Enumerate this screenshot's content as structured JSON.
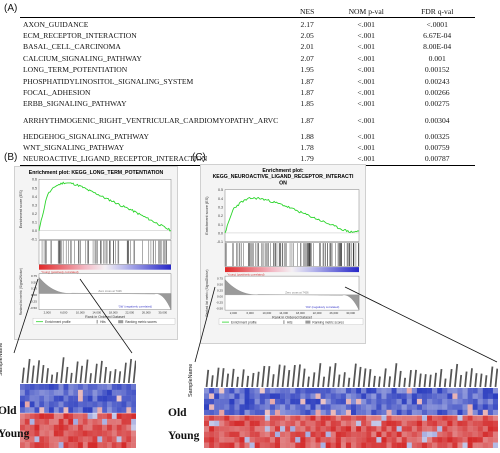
{
  "panels": {
    "a": "(A)",
    "b": "(B)",
    "c": "(C)"
  },
  "table": {
    "headers": [
      "",
      "NES",
      "NOM p-val",
      "FDR q-val"
    ],
    "rows": [
      [
        "AXON_GUIDANCE",
        "2.17",
        "<.001",
        "<.0001"
      ],
      [
        "ECM_RECEPTOR_INTERACTION",
        "2.05",
        "<.001",
        "6.67E-04"
      ],
      [
        "BASAL_CELL_CARCINOMA",
        "2.01",
        "<.001",
        "8.00E-04"
      ],
      [
        "CALCIUM_SIGNALING_PATHWAY",
        "2.07",
        "<.001",
        "0.001"
      ],
      [
        "LONG_TERM_POTENTIATION",
        "1.95",
        "<.001",
        "0.00152"
      ],
      [
        "PHOSPHATIDYLINOSITOL_SIGNALING_SYSTEM",
        "1.87",
        "<.001",
        "0.00243"
      ],
      [
        "FOCAL_ADHESION",
        "1.87",
        "<.001",
        "0.00266"
      ],
      [
        "ERBB_SIGNALING_PATHWAY",
        "1.85",
        "<.001",
        "0.00275"
      ],
      [
        "ARRHYTHMOGENIC_RIGHT_VENTRICULAR_CARDIOMYOPATHY_ARVC",
        "1.87",
        "<.001",
        "0.00304"
      ],
      [
        "HEDGEHOG_SIGNALING_PATHWAY",
        "1.88",
        "<.001",
        "0.00325"
      ],
      [
        "WNT_SIGNALING_PATHWAY",
        "1.78",
        "<.001",
        "0.00759"
      ],
      [
        "NEUROACTIVE_LIGAND_RECEPTOR_INTERACTION",
        "1.79",
        "<.001",
        "0.00787"
      ]
    ]
  },
  "plot_b": {
    "title_line1": "Enrichment plot: KEGG_LONG_TERM_POTENTIATION",
    "title_line2": "",
    "es_ylabel": "Enrichment score (ES)",
    "rank_ylabel": "Ranked list metric (Signal2Noise)",
    "xlabel": "Rank in Ordered Dataset",
    "pos_label": "'Young' (positively correlated)",
    "neg_label": "'Old' (negatively correlated)",
    "zero_label": "Zero cross at 7426",
    "legend": [
      "Enrichment profile",
      "Hits",
      "Ranking metric scores"
    ]
  },
  "plot_c": {
    "title_line1": "Enrichment plot:",
    "title_line2": "KEGG_NEUROACTIVE_LIGAND_RECEPTOR_INTERACTI",
    "title_line3": "ON",
    "es_ylabel": "Enrichment score (ES)",
    "rank_ylabel": "Ranked list metric (Signal2Noise)",
    "xlabel": "Rank in Ordered Dataset",
    "pos_label": "'Young' (positively correlated)",
    "neg_label": "'Old' (negatively correlated)",
    "zero_label": "Zero cross at 7426",
    "legend": [
      "Enrichment profile",
      "Hits",
      "Ranking metric scores"
    ]
  },
  "es_axis": {
    "ticks": [
      "0.6",
      "0.5",
      "0.4",
      "0.3",
      "0.2",
      "0.1",
      "0.0",
      "-0.1"
    ]
  },
  "rank_axis": {
    "ticks": [
      "0.75",
      "0.50",
      "0.25",
      "0.00",
      "-0.25",
      "-0.50"
    ]
  },
  "x_axis": {
    "ticks": [
      "2,000",
      "6,000",
      "10,000",
      "14,000",
      "18,000",
      "22,000",
      "26,000",
      "30,000"
    ]
  },
  "heatmap": {
    "header": "SampleName",
    "groups": [
      "Old",
      "Young"
    ],
    "colors": {
      "high": "#d42a2a",
      "low": "#2d3fc0",
      "mid": "#f1f1f4"
    }
  },
  "chart_data": [
    {
      "type": "line",
      "title": "Enrichment plot: KEGG_LONG_TERM_POTENTIATION",
      "ylabel": "Enrichment score (ES)",
      "xlabel": "Rank in Ordered Dataset",
      "x": [
        0,
        2000,
        4000,
        6000,
        8000,
        10000,
        12000,
        14000,
        16000,
        18000,
        20000,
        22000,
        24000,
        26000,
        28000,
        30000,
        32000
      ],
      "series": [
        {
          "name": "Enrichment profile",
          "values": [
            0.0,
            0.42,
            0.52,
            0.56,
            0.55,
            0.52,
            0.47,
            0.43,
            0.38,
            0.34,
            0.29,
            0.25,
            0.2,
            0.15,
            0.1,
            0.05,
            0.0
          ]
        }
      ],
      "ylim": [
        -0.1,
        0.6
      ]
    },
    {
      "type": "line",
      "title": "Enrichment plot: KEGG_NEUROACTIVE_LIGAND_RECEPTOR_INTERACTION",
      "ylabel": "Enrichment score (ES)",
      "xlabel": "Rank in Ordered Dataset",
      "x": [
        0,
        2000,
        4000,
        6000,
        8000,
        10000,
        12000,
        14000,
        16000,
        18000,
        20000,
        22000,
        24000,
        26000,
        28000,
        30000,
        32000
      ],
      "series": [
        {
          "name": "Enrichment profile",
          "values": [
            0.0,
            0.28,
            0.36,
            0.4,
            0.4,
            0.38,
            0.35,
            0.32,
            0.28,
            0.24,
            0.2,
            0.16,
            0.12,
            0.08,
            0.04,
            0.01,
            0.02
          ]
        }
      ],
      "ylim": [
        -0.1,
        0.5
      ]
    }
  ]
}
